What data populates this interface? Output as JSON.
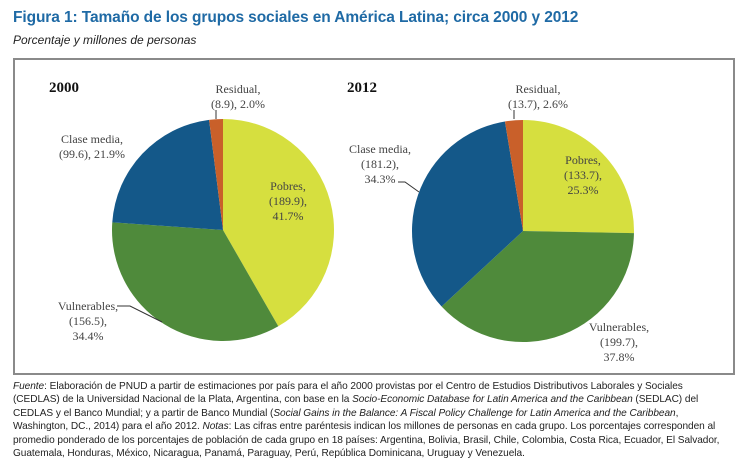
{
  "title": "Figura 1: Tamaño de los grupos sociales en América Latina; circa 2000 y 2012",
  "subtitle": "Porcentaje y millones de personas",
  "colors": {
    "title": "#1f6aa5",
    "Pobres": "#d6df3f",
    "Vulnerables": "#4f8a3b",
    "Clase media": "#145889",
    "Residual": "#c9602a"
  },
  "chart_data": [
    {
      "type": "pie",
      "title": "2000",
      "start": "12 o'clock, clockwise",
      "slices": [
        {
          "name": "Pobres",
          "millions": 189.9,
          "percent": 41.7,
          "label": [
            "Pobres,",
            "(189.9),",
            "41.7%"
          ]
        },
        {
          "name": "Vulnerables",
          "millions": 156.5,
          "percent": 34.4,
          "label": [
            "Vulnerables,",
            "(156.5),",
            "34.4%"
          ]
        },
        {
          "name": "Clase media",
          "millions": 99.6,
          "percent": 21.9,
          "label": [
            "Clase media,",
            "(99.6), 21.9%"
          ]
        },
        {
          "name": "Residual",
          "millions": 8.9,
          "percent": 2.0,
          "label": [
            "Residual,",
            "(8.9), 2.0%"
          ]
        }
      ]
    },
    {
      "type": "pie",
      "title": "2012",
      "start": "12 o'clock, clockwise",
      "slices": [
        {
          "name": "Pobres",
          "millions": 133.7,
          "percent": 25.3,
          "label": [
            "Pobres,",
            "(133.7),",
            "25.3%"
          ]
        },
        {
          "name": "Vulnerables",
          "millions": 199.7,
          "percent": 37.8,
          "label": [
            "Vulnerables,",
            "(199.7),",
            "37.8%"
          ]
        },
        {
          "name": "Clase media",
          "millions": 181.2,
          "percent": 34.3,
          "label": [
            "Clase media,",
            "(181.2),",
            "34.3%"
          ]
        },
        {
          "name": "Residual",
          "millions": 13.7,
          "percent": 2.6,
          "label": [
            "Residual,",
            "(13.7), 2.6%"
          ]
        }
      ]
    }
  ],
  "note": {
    "source_label": "Fuente",
    "source_text_1": ": Elaboración de PNUD a partir de estimaciones por país para el año 2000 provistas por el Centro de Estudios Distributivos Laborales y Sociales (CEDLAS) de la Universidad Nacional de la Plata, Argentina, con base en la ",
    "source_italic_1": "Socio-Economic Database for Latin America and the Caribbean",
    "source_text_2": " (SEDLAC) del CEDLAS y el Banco Mundial; y a partir de Banco Mundial (",
    "source_italic_2": "Social Gains in the Balance: A Fiscal Policy Challenge for Latin America and the Caribbean",
    "source_text_3": ", Washington, DC., 2014) para el año 2012. ",
    "notes_label": "Notas",
    "notes_text": ": Las cifras entre paréntesis indican los millones de personas en cada grupo. Los porcentajes corresponden al promedio ponderado de los porcentajes de población de cada grupo en 18 países: Argentina, Bolivia, Brasil, Chile, Colombia, Costa Rica, Ecuador, El Salvador, Guatemala, Honduras, México, Nicaragua, Panamá, Paraguay, Perú, República Dominicana, Uruguay y Venezuela."
  }
}
